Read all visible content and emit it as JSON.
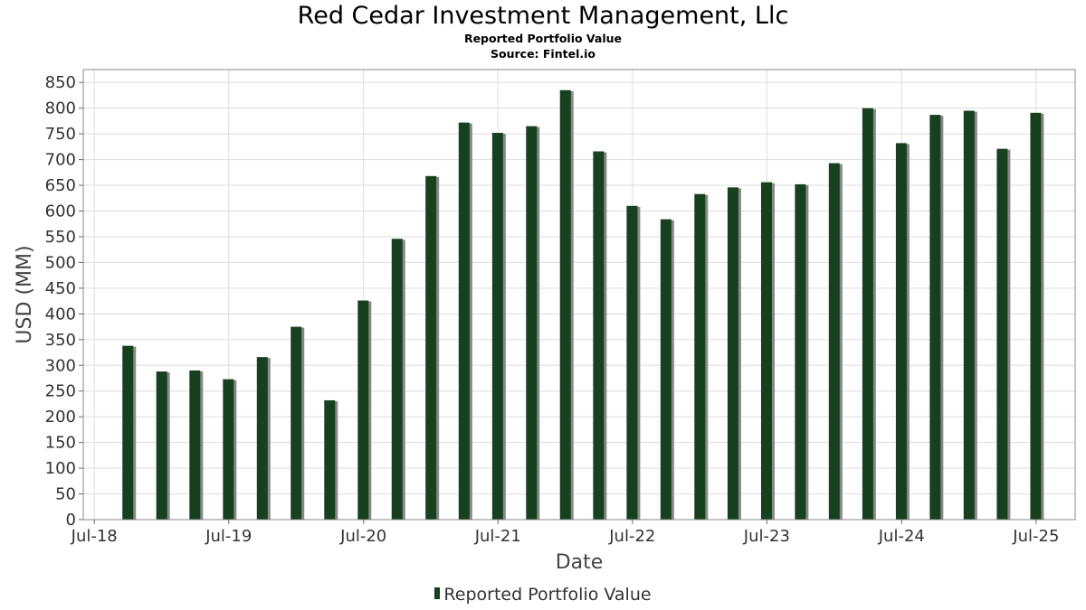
{
  "title": "Red Cedar Investment Management, Llc",
  "subtitle": "Reported Portfolio Value",
  "source": "Source: Fintel.io",
  "legend": "Reported Portfolio Value",
  "colors": {
    "bar": "#17401f",
    "shadow": "#888888",
    "grid": "#dddddd",
    "frame": "#888888"
  },
  "chart_data": {
    "type": "bar",
    "title": "Red Cedar Investment Management, Llc",
    "subtitle": "Reported Portfolio Value",
    "xlabel": "Date",
    "ylabel": "USD (MM)",
    "ylim": [
      0,
      875
    ],
    "yticks": [
      0,
      50,
      100,
      150,
      200,
      250,
      300,
      350,
      400,
      450,
      500,
      550,
      600,
      650,
      700,
      750,
      800,
      850
    ],
    "xticks": [
      "Jul-18",
      "Jul-19",
      "Jul-20",
      "Jul-21",
      "Jul-22",
      "Jul-23",
      "Jul-24",
      "Jul-25"
    ],
    "grid": true,
    "legend_position": "bottom",
    "series": [
      {
        "name": "Reported Portfolio Value",
        "points": [
          {
            "date": "2018-09-30",
            "value": 338
          },
          {
            "date": "2018-12-31",
            "value": 288
          },
          {
            "date": "2019-03-31",
            "value": 290
          },
          {
            "date": "2019-06-30",
            "value": 273
          },
          {
            "date": "2019-09-30",
            "value": 316
          },
          {
            "date": "2019-12-31",
            "value": 375
          },
          {
            "date": "2020-03-31",
            "value": 232
          },
          {
            "date": "2020-06-30",
            "value": 426
          },
          {
            "date": "2020-09-30",
            "value": 546
          },
          {
            "date": "2020-12-31",
            "value": 668
          },
          {
            "date": "2021-03-31",
            "value": 772
          },
          {
            "date": "2021-06-30",
            "value": 752
          },
          {
            "date": "2021-09-30",
            "value": 765
          },
          {
            "date": "2021-12-31",
            "value": 835
          },
          {
            "date": "2022-03-31",
            "value": 716
          },
          {
            "date": "2022-06-30",
            "value": 610
          },
          {
            "date": "2022-09-30",
            "value": 584
          },
          {
            "date": "2022-12-31",
            "value": 633
          },
          {
            "date": "2023-03-31",
            "value": 646
          },
          {
            "date": "2023-06-30",
            "value": 656
          },
          {
            "date": "2023-09-30",
            "value": 652
          },
          {
            "date": "2023-12-31",
            "value": 693
          },
          {
            "date": "2024-03-31",
            "value": 800
          },
          {
            "date": "2024-06-30",
            "value": 732
          },
          {
            "date": "2024-09-30",
            "value": 787
          },
          {
            "date": "2024-12-31",
            "value": 795
          },
          {
            "date": "2025-03-31",
            "value": 721
          },
          {
            "date": "2025-06-30",
            "value": 791
          }
        ]
      }
    ]
  }
}
